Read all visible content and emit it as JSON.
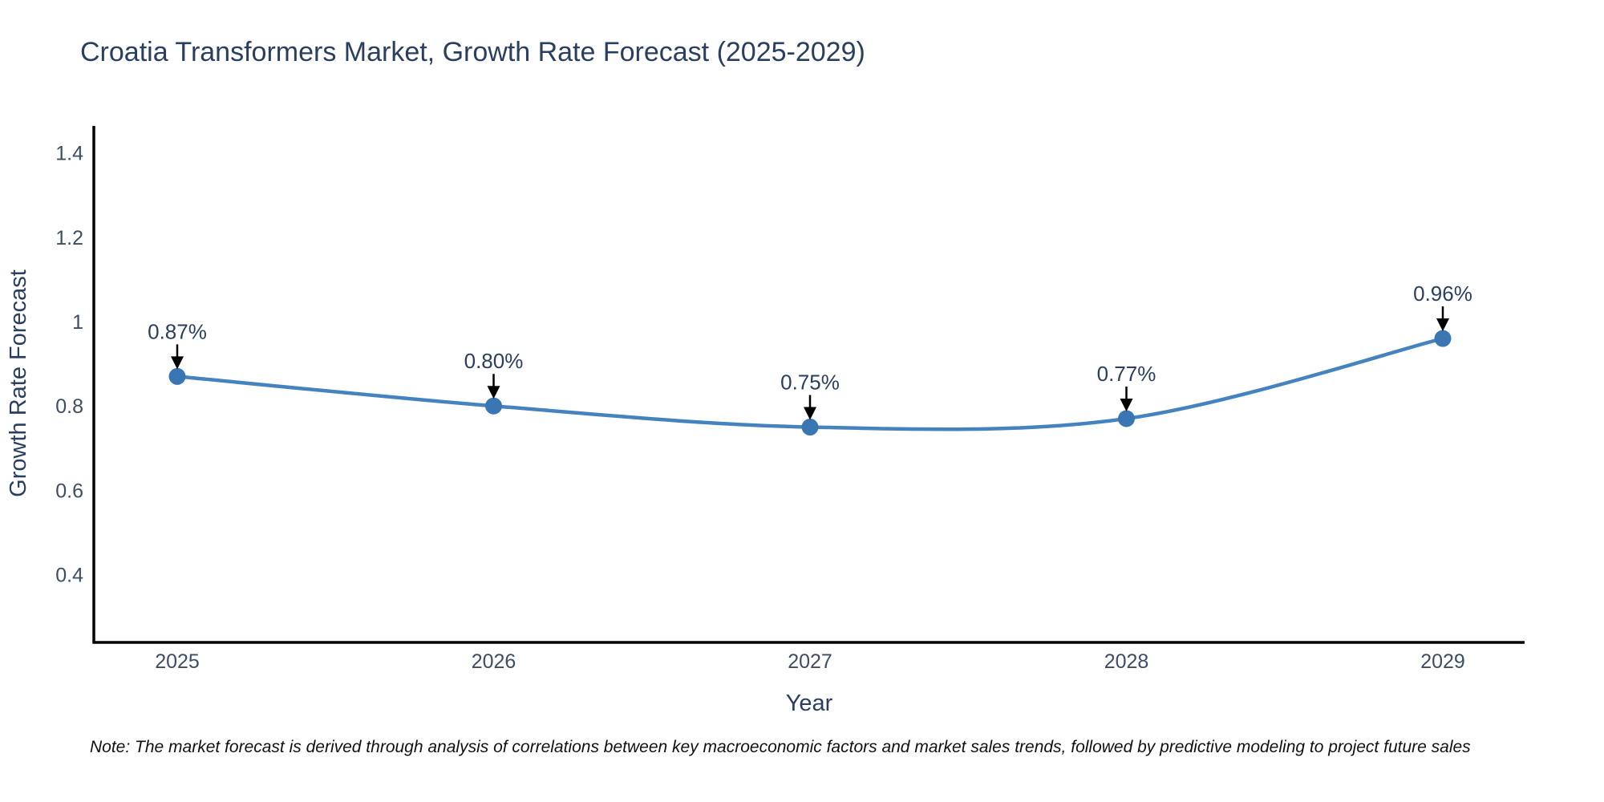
{
  "title": "Croatia Transformers Market, Growth Rate Forecast (2025-2029)",
  "note": "Note: The market forecast is derived through analysis of correlations between key macroeconomic factors and market sales trends, followed by predictive modeling to project future sales",
  "chart_data": {
    "type": "line",
    "curve": "spline",
    "title": "Croatia Transformers Market, Growth Rate Forecast (2025-2029)",
    "xlabel": "Year",
    "ylabel": "Growth Rate Forecast",
    "categories": [
      "2025",
      "2026",
      "2027",
      "2028",
      "2029"
    ],
    "x": [
      2025,
      2026,
      2027,
      2028,
      2029
    ],
    "values": [
      0.87,
      0.8,
      0.75,
      0.77,
      0.96
    ],
    "point_labels": [
      "0.87%",
      "0.80%",
      "0.75%",
      "0.77%",
      "0.96%"
    ],
    "series_name": "Growth Rate Forecast",
    "ytick_labels": [
      "1.4",
      "1.2",
      "1",
      "0.8",
      "0.6",
      "0.4"
    ],
    "ytick_values": [
      1.4,
      1.2,
      1.0,
      0.8,
      0.6,
      0.4
    ],
    "ylim": [
      0.24,
      1.47
    ],
    "grid": false,
    "legend_position": "none",
    "line_color": "#4583bf",
    "marker_color": "#3a76b2",
    "axis_color": "#000000",
    "title_color": "#2a3f5f",
    "annotation_arrow_color": "#000000",
    "background_color": "#ffffff"
  }
}
